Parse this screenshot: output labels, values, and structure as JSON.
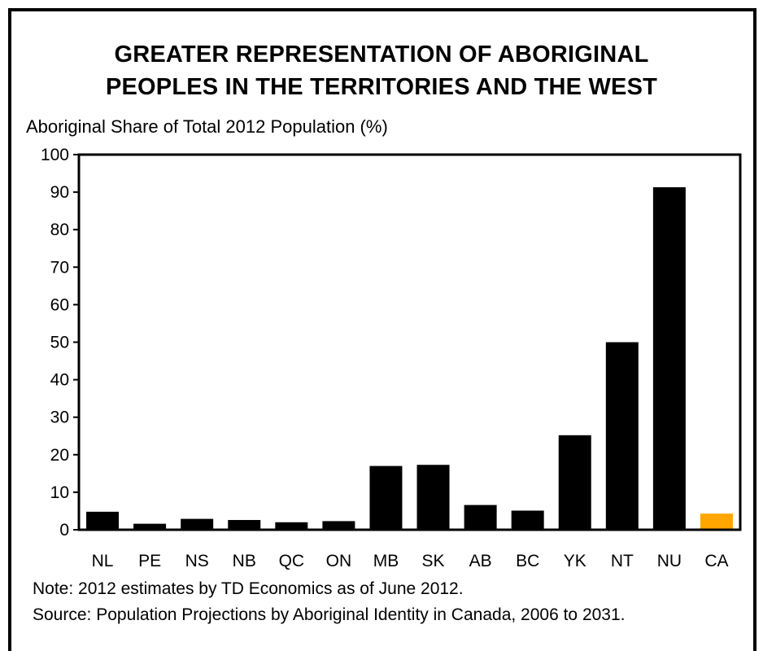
{
  "chart_data": {
    "type": "bar",
    "title_line1": "GREATER REPRESENTATION OF ABORIGINAL",
    "title_line2": "PEOPLES IN THE TERRITORIES AND THE WEST",
    "ylabel": "Aboriginal Share of Total 2012 Population (%)",
    "xlabel": "",
    "ylim": [
      0,
      100
    ],
    "yticks": [
      0,
      10,
      20,
      30,
      40,
      50,
      60,
      70,
      80,
      90,
      100
    ],
    "categories": [
      "NL",
      "PE",
      "NS",
      "NB",
      "QC",
      "ON",
      "MB",
      "SK",
      "AB",
      "BC",
      "YK",
      "NT",
      "NU",
      "CA"
    ],
    "values": [
      4.8,
      1.6,
      2.9,
      2.6,
      2.0,
      2.3,
      17.0,
      17.3,
      6.6,
      5.1,
      25.2,
      50.0,
      91.3,
      4.3
    ],
    "colors": [
      "#000000",
      "#000000",
      "#000000",
      "#000000",
      "#000000",
      "#000000",
      "#000000",
      "#000000",
      "#000000",
      "#000000",
      "#000000",
      "#000000",
      "#000000",
      "#FFA500"
    ],
    "grid": false,
    "legend": "none",
    "note": "Note: 2012 estimates by TD Economics as of June 2012.",
    "source": "Source: Population Projections by Aboriginal Identity in Canada, 2006 to 2031."
  }
}
